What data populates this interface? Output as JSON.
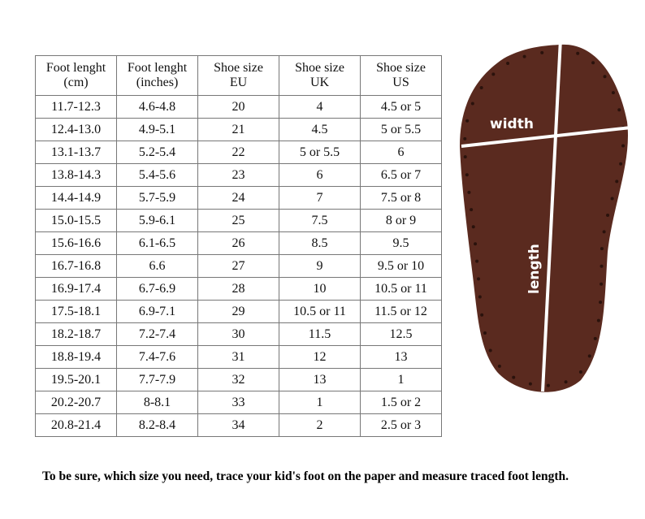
{
  "table": {
    "header": [
      [
        "Foot lenght",
        "(cm)"
      ],
      [
        "Foot lenght",
        "(inches)"
      ],
      [
        "Shoe size",
        "EU"
      ],
      [
        "Shoe size",
        "UK"
      ],
      [
        "Shoe size",
        "US"
      ]
    ],
    "rows": [
      [
        "11.7-12.3",
        "4.6-4.8",
        "20",
        "4",
        "4.5 or 5"
      ],
      [
        "12.4-13.0",
        "4.9-5.1",
        "21",
        "4.5",
        "5 or 5.5"
      ],
      [
        "13.1-13.7",
        "5.2-5.4",
        "22",
        "5 or 5.5",
        "6"
      ],
      [
        "13.8-14.3",
        "5.4-5.6",
        "23",
        "6",
        "6.5 or 7"
      ],
      [
        "14.4-14.9",
        "5.7-5.9",
        "24",
        "7",
        "7.5 or 8"
      ],
      [
        "15.0-15.5",
        "5.9-6.1",
        "25",
        "7.5",
        "8 or 9"
      ],
      [
        "15.6-16.6",
        "6.1-6.5",
        "26",
        "8.5",
        "9.5"
      ],
      [
        "16.7-16.8",
        "6.6",
        "27",
        "9",
        "9.5 or 10"
      ],
      [
        "16.9-17.4",
        "6.7-6.9",
        "28",
        "10",
        "10.5 or 11"
      ],
      [
        "17.5-18.1",
        "6.9-7.1",
        "29",
        "10.5 or 11",
        "11.5 or 12"
      ],
      [
        "18.2-18.7",
        "7.2-7.4",
        "30",
        "11.5",
        "12.5"
      ],
      [
        "18.8-19.4",
        "7.4-7.6",
        "31",
        "12",
        "13"
      ],
      [
        "19.5-20.1",
        "7.7-7.9",
        "32",
        "13",
        "1"
      ],
      [
        "20.2-20.7",
        "8-8.1",
        "33",
        "1",
        "1.5 or 2"
      ],
      [
        "20.8-21.4",
        "8.2-8.4",
        "34",
        "2",
        "2.5 or 3"
      ]
    ]
  },
  "image": {
    "width_label": "width",
    "length_label": "length"
  },
  "footer": {
    "note": "To be sure, which size you need, trace your kid's foot on the paper and measure traced foot length."
  }
}
